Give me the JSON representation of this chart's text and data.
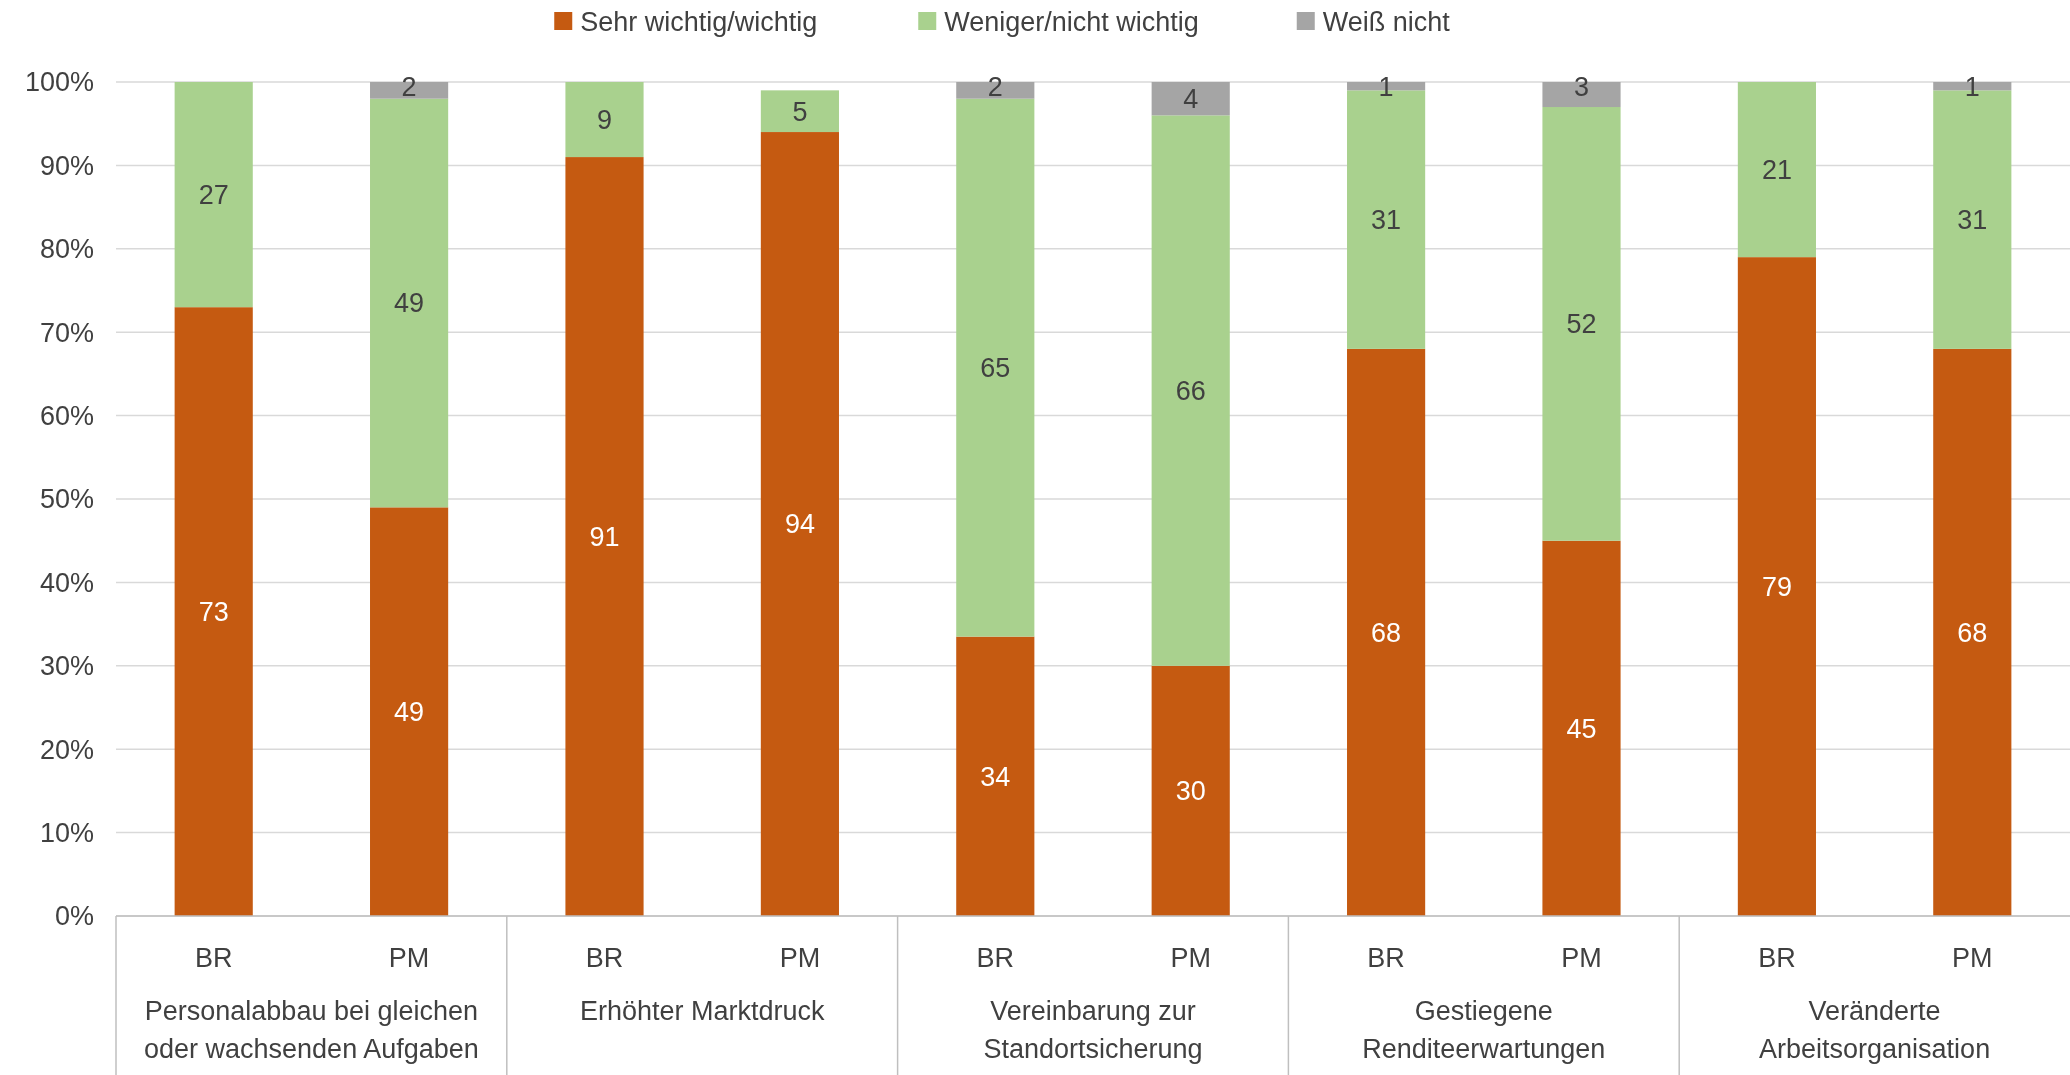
{
  "chart_data": {
    "type": "bar",
    "stacked": true,
    "categories": [
      "BR",
      "PM",
      "BR",
      "PM",
      "BR",
      "PM",
      "BR",
      "PM",
      "BR",
      "PM"
    ],
    "annotations": [
      "Personalabbau bei gleichen oder wachsenden Aufgaben",
      "Erhöhter Marktdruck",
      "Vereinbarung zur Standortsicherung",
      "Gestiegene Renditeerwartungen",
      "Veränderte Arbeitsorganisation"
    ],
    "series": [
      {
        "name": "Sehr wichtig/wichtig",
        "color": "#c55a11",
        "values": [
          73,
          49,
          91,
          94,
          33.5,
          30,
          68,
          45,
          79,
          68
        ],
        "value_labels": [
          "73",
          "49",
          "91",
          "94",
          "34",
          "30",
          "68",
          "45",
          "79",
          "68"
        ]
      },
      {
        "name": "Weniger/nicht wichtig",
        "color": "#a9d18e",
        "values": [
          27,
          49,
          9,
          5,
          64.5,
          66,
          31,
          52,
          21,
          31
        ],
        "value_labels": [
          "27",
          "49",
          "9",
          "5",
          "65",
          "66",
          "31",
          "52",
          "21",
          "31"
        ]
      },
      {
        "name": "Weiß nicht",
        "color": "#a5a5a5",
        "values": [
          null,
          2,
          null,
          null,
          2,
          4,
          1,
          3,
          null,
          1
        ],
        "value_labels": [
          null,
          "2",
          null,
          null,
          "2",
          "4",
          "1",
          "3",
          null,
          "1"
        ]
      }
    ],
    "ylim": [
      0,
      100
    ],
    "yticks": [
      {
        "value": 0,
        "label": "0%"
      },
      {
        "value": 10,
        "label": "10%"
      },
      {
        "value": 20,
        "label": "20%"
      },
      {
        "value": 30,
        "label": "30%"
      },
      {
        "value": 40,
        "label": "40%"
      },
      {
        "value": 50,
        "label": "50%"
      },
      {
        "value": 60,
        "label": "60%"
      },
      {
        "value": 70,
        "label": "70%"
      },
      {
        "value": 80,
        "label": "80%"
      },
      {
        "value": 90,
        "label": "90%"
      },
      {
        "value": 100,
        "label": "100%"
      }
    ],
    "grid": "y",
    "legend": "top"
  }
}
